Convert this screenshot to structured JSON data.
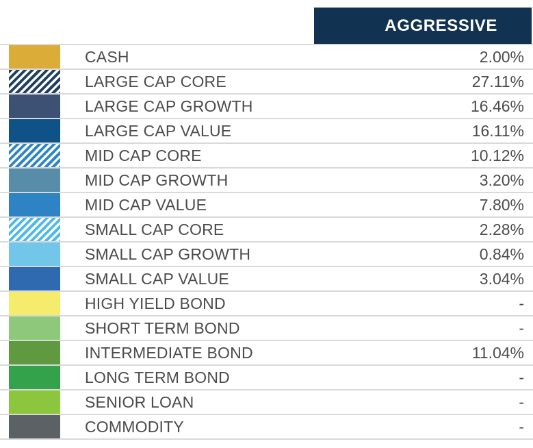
{
  "header": {
    "column_label": "AGGRESSIVE"
  },
  "colors": {
    "header_bg": "#113351",
    "header_text": "#FFFFFF",
    "divider": "#D9D9D9",
    "label_text": "#4B4B4B",
    "background": "#FFFFFF"
  },
  "table": {
    "rows": [
      {
        "label": "CASH",
        "value": "2.00%",
        "swatch_color": "#DBAC38",
        "swatch_pattern": "solid"
      },
      {
        "label": "LARGE CAP CORE",
        "value": "27.11%",
        "swatch_color": "#20405F",
        "swatch_pattern": "hatched"
      },
      {
        "label": "LARGE CAP GROWTH",
        "value": "16.46%",
        "swatch_color": "#3D5174",
        "swatch_pattern": "solid"
      },
      {
        "label": "LARGE CAP VALUE",
        "value": "16.11%",
        "swatch_color": "#0E5288",
        "swatch_pattern": "solid"
      },
      {
        "label": "MID CAP CORE",
        "value": "10.12%",
        "swatch_color": "#2F86C6",
        "swatch_pattern": "hatched"
      },
      {
        "label": "MID CAP GROWTH",
        "value": "3.20%",
        "swatch_color": "#578DA8",
        "swatch_pattern": "solid"
      },
      {
        "label": "MID CAP VALUE",
        "value": "7.80%",
        "swatch_color": "#2E83C4",
        "swatch_pattern": "solid"
      },
      {
        "label": "SMALL CAP CORE",
        "value": "2.28%",
        "swatch_color": "#4FB9E8",
        "swatch_pattern": "hatched"
      },
      {
        "label": "SMALL CAP GROWTH",
        "value": "0.84%",
        "swatch_color": "#71C6EA",
        "swatch_pattern": "solid"
      },
      {
        "label": "SMALL CAP VALUE",
        "value": "3.04%",
        "swatch_color": "#2F6AB1",
        "swatch_pattern": "solid"
      },
      {
        "label": "HIGH YIELD BOND",
        "value": "-",
        "swatch_color": "#F6EC6B",
        "swatch_pattern": "solid"
      },
      {
        "label": "SHORT TERM BOND",
        "value": "-",
        "swatch_color": "#8EC97B",
        "swatch_pattern": "solid"
      },
      {
        "label": "INTERMEDIATE BOND",
        "value": "11.04%",
        "swatch_color": "#5F9A41",
        "swatch_pattern": "solid"
      },
      {
        "label": "LONG TERM BOND",
        "value": "-",
        "swatch_color": "#33A24B",
        "swatch_pattern": "solid"
      },
      {
        "label": "SENIOR LOAN",
        "value": "-",
        "swatch_color": "#8CC63F",
        "swatch_pattern": "solid"
      },
      {
        "label": "COMMODITY",
        "value": "-",
        "swatch_color": "#5C6166",
        "swatch_pattern": "solid"
      }
    ]
  }
}
